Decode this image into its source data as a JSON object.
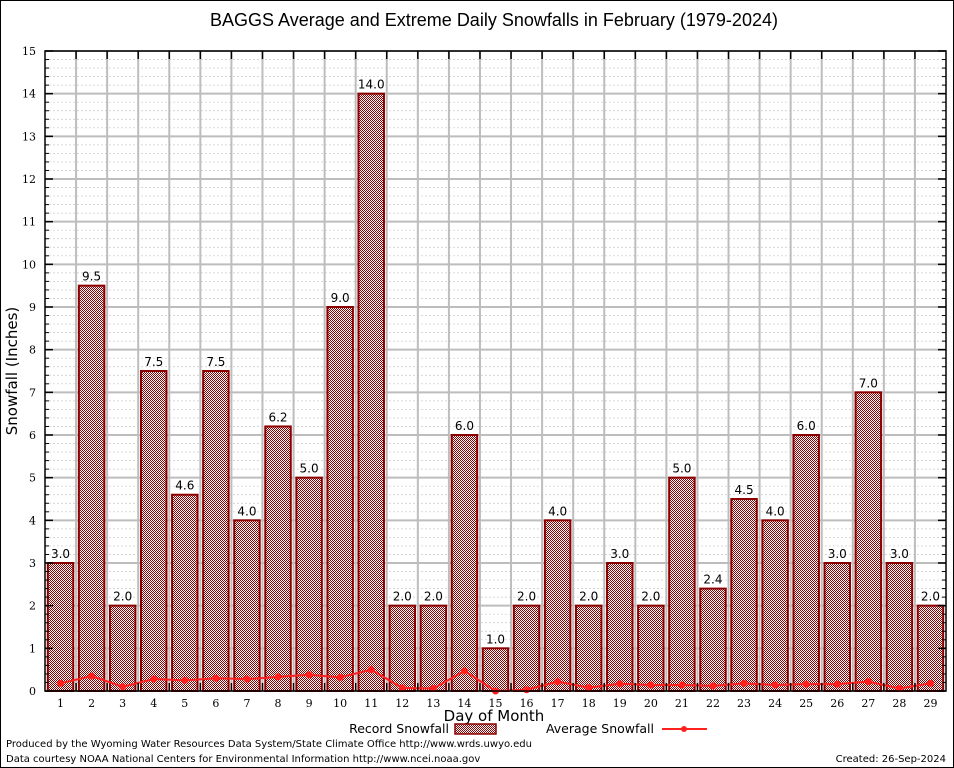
{
  "chart_data": {
    "type": "bar",
    "title": "BAGGS Average and Extreme Daily Snowfalls in February (1979-2024)",
    "xlabel": "Day of Month",
    "ylabel": "Snowfall (Inches)",
    "ylim": [
      0,
      15
    ],
    "yticks": [
      0,
      1,
      2,
      3,
      4,
      5,
      6,
      7,
      8,
      9,
      10,
      11,
      12,
      13,
      14,
      15
    ],
    "grid": true,
    "categories": [
      "1",
      "2",
      "3",
      "4",
      "5",
      "6",
      "7",
      "8",
      "9",
      "10",
      "11",
      "12",
      "13",
      "14",
      "15",
      "16",
      "17",
      "18",
      "19",
      "20",
      "21",
      "22",
      "23",
      "24",
      "25",
      "26",
      "27",
      "28",
      "29"
    ],
    "series": [
      {
        "name": "Record Snowfall",
        "type": "bar",
        "color": "#8b0000",
        "values": [
          3.0,
          9.5,
          2.0,
          7.5,
          4.6,
          7.5,
          4.0,
          6.2,
          5.0,
          9.0,
          14.0,
          2.0,
          2.0,
          6.0,
          1.0,
          2.0,
          4.0,
          2.0,
          3.0,
          2.0,
          5.0,
          2.4,
          4.5,
          4.0,
          6.0,
          3.0,
          7.0,
          3.0,
          2.0
        ],
        "labels": [
          "3.0",
          "9.5",
          "2.0",
          "7.5",
          "4.6",
          "7.5",
          "4.0",
          "6.2",
          "5.0",
          "9.0",
          "14.0",
          "2.0",
          "2.0",
          "6.0",
          "1.0",
          "2.0",
          "4.0",
          "2.0",
          "3.0",
          "2.0",
          "5.0",
          "2.4",
          "4.5",
          "4.0",
          "6.0",
          "3.0",
          "7.0",
          "3.0",
          "2.0"
        ]
      },
      {
        "name": "Average Snowfall",
        "type": "line",
        "color": "#ff2020",
        "values": [
          0.18,
          0.35,
          0.1,
          0.28,
          0.25,
          0.3,
          0.28,
          0.33,
          0.38,
          0.32,
          0.5,
          0.07,
          0.06,
          0.47,
          0.0,
          0.03,
          0.22,
          0.08,
          0.17,
          0.14,
          0.14,
          0.12,
          0.18,
          0.14,
          0.16,
          0.16,
          0.22,
          0.06,
          0.18
        ]
      }
    ],
    "legend": {
      "placement": "bottom-center",
      "entries": [
        "Record Snowfall",
        "Average Snowfall"
      ]
    }
  },
  "footer": {
    "line1": "Produced by the Wyoming Water Resources Data System/State Climate Office http://www.wrds.uwyo.edu",
    "line2": "Data courtesy NOAA National Centers for Environmental Information http://www.ncei.noaa.gov",
    "created": "Created: 26-Sep-2024"
  }
}
